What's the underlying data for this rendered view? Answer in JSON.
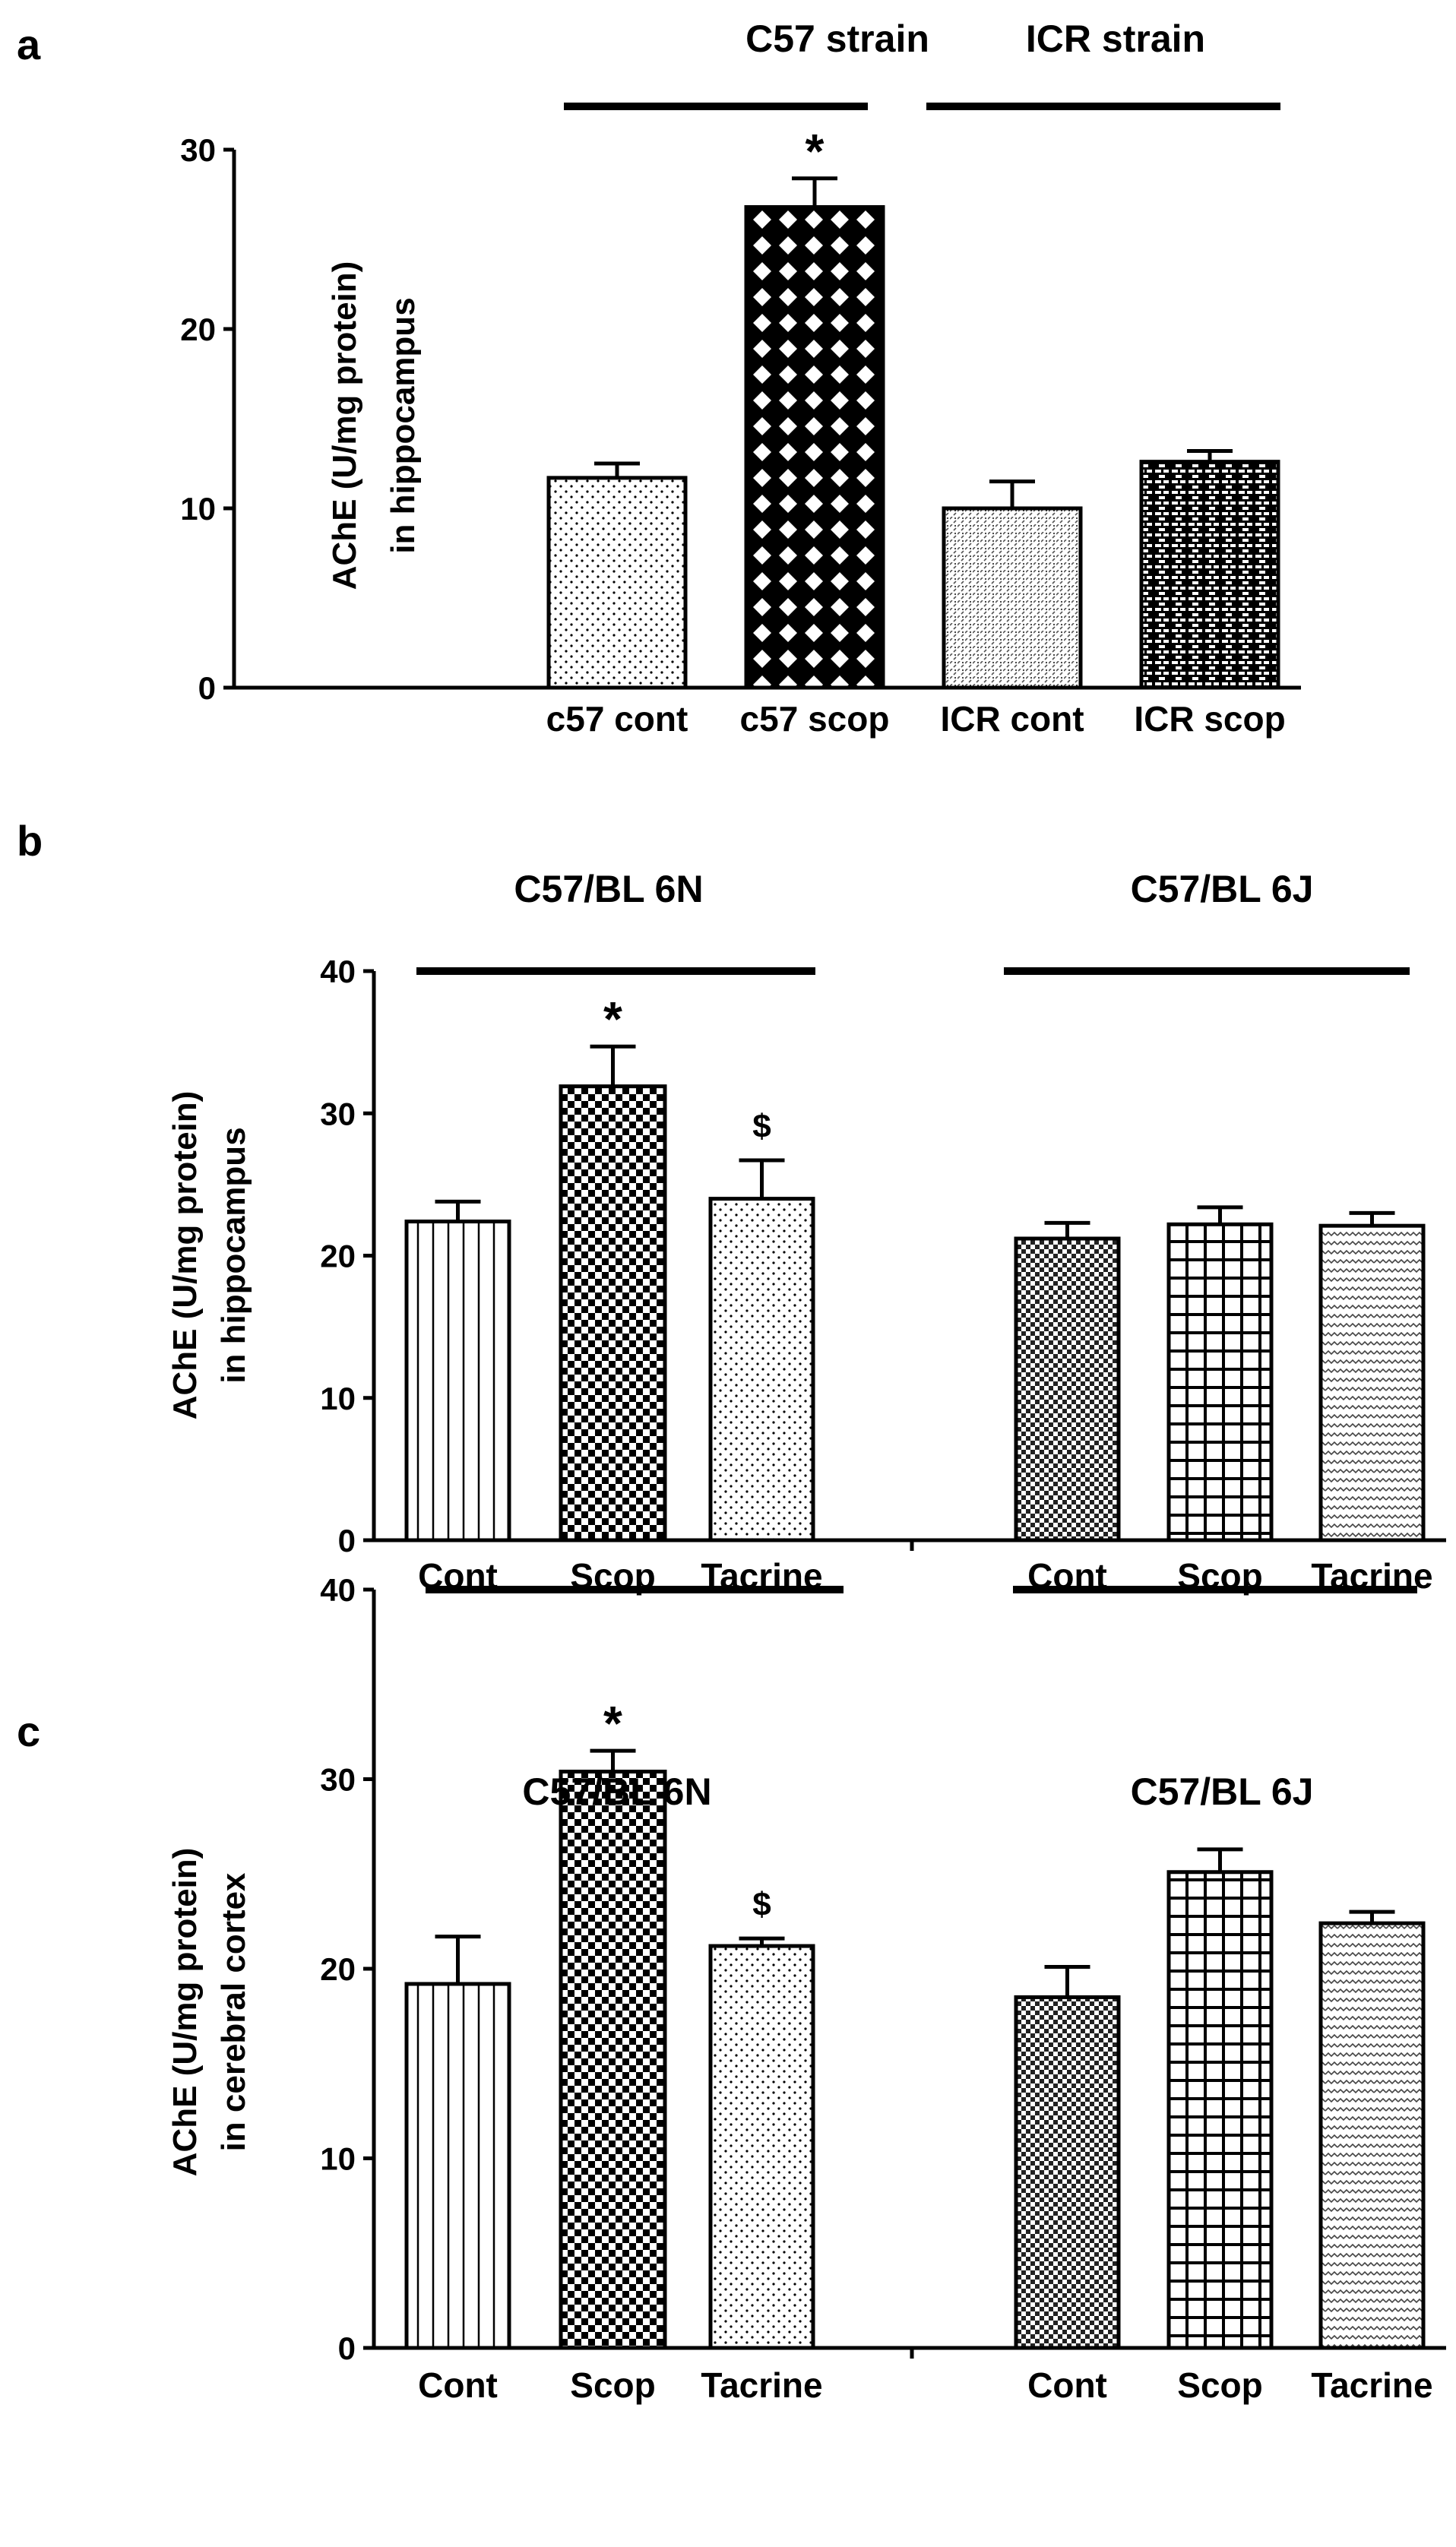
{
  "panels": [
    {
      "label": "a",
      "ylabel_lines": [
        "AChE (U/mg protein)",
        "in hippocampus"
      ],
      "groups": [
        "C57 strain",
        "ICR strain"
      ]
    },
    {
      "label": "b",
      "ylabel_lines": [
        "AChE (U/mg protein)",
        "in hippocampus"
      ],
      "groups": [
        "C57/BL 6N",
        "C57/BL 6J"
      ]
    },
    {
      "label": "c",
      "ylabel_lines": [
        "AChE (U/mg protein)",
        "in cerebral cortex"
      ],
      "groups": [
        "C57/BL 6N",
        "C57/BL 6J"
      ]
    }
  ],
  "chart_data": [
    {
      "type": "bar",
      "panel": "a",
      "title": "",
      "ylabel": "AChE (U/mg protein) in hippocampus",
      "ylim": [
        0,
        30
      ],
      "yticks": [
        0,
        10,
        20,
        30
      ],
      "categories": [
        "c57 cont",
        "c57 scop",
        "ICR cont",
        "ICR scop"
      ],
      "values": [
        11.7,
        26.8,
        10.0,
        12.6
      ],
      "errors": [
        0.8,
        1.6,
        1.5,
        0.6
      ],
      "annotations": [
        "",
        "*",
        "",
        ""
      ],
      "patterns": [
        "dots",
        "diamond",
        "dots-fine",
        "brick"
      ],
      "groups": [
        {
          "name": "C57 strain",
          "members": [
            0,
            1
          ]
        },
        {
          "name": "ICR strain",
          "members": [
            2,
            3
          ]
        }
      ]
    },
    {
      "type": "bar",
      "panel": "b",
      "title": "",
      "ylabel": "AChE (U/mg protein) in hippocampus",
      "ylim": [
        0,
        40
      ],
      "yticks": [
        0,
        10,
        20,
        30,
        40
      ],
      "categories": [
        "Cont",
        "Scop",
        "Tacrine",
        "Cont",
        "Scop",
        "Tacrine"
      ],
      "values": [
        22.4,
        31.9,
        24.0,
        21.2,
        22.2,
        22.1
      ],
      "errors": [
        1.4,
        2.8,
        2.7,
        1.1,
        1.2,
        0.9
      ],
      "annotations": [
        "",
        "*",
        "$",
        "",
        "",
        ""
      ],
      "patterns": [
        "vlines",
        "checker",
        "dots",
        "checker-fine",
        "grid",
        "wave"
      ],
      "groups": [
        {
          "name": "C57/BL 6N",
          "members": [
            0,
            1,
            2
          ]
        },
        {
          "name": "C57/BL 6J",
          "members": [
            3,
            4,
            5
          ]
        }
      ]
    },
    {
      "type": "bar",
      "panel": "c",
      "title": "",
      "ylabel": "AChE (U/mg protein) in cerebral cortex",
      "ylim": [
        0,
        40
      ],
      "yticks": [
        0,
        10,
        20,
        30,
        40
      ],
      "categories": [
        "Cont",
        "Scop",
        "Tacrine",
        "Cont",
        "Scop",
        "Tacrine"
      ],
      "values": [
        19.2,
        30.4,
        21.2,
        18.5,
        25.1,
        22.4
      ],
      "errors": [
        2.5,
        1.1,
        0.4,
        1.6,
        1.2,
        0.6
      ],
      "annotations": [
        "",
        "*",
        "$",
        "",
        "",
        ""
      ],
      "patterns": [
        "vlines",
        "checker",
        "dots",
        "checker-fine",
        "grid",
        "wave"
      ],
      "groups": [
        {
          "name": "C57/BL 6N",
          "members": [
            0,
            1,
            2
          ]
        },
        {
          "name": "C57/BL 6J",
          "members": [
            3,
            4,
            5
          ]
        }
      ]
    }
  ]
}
